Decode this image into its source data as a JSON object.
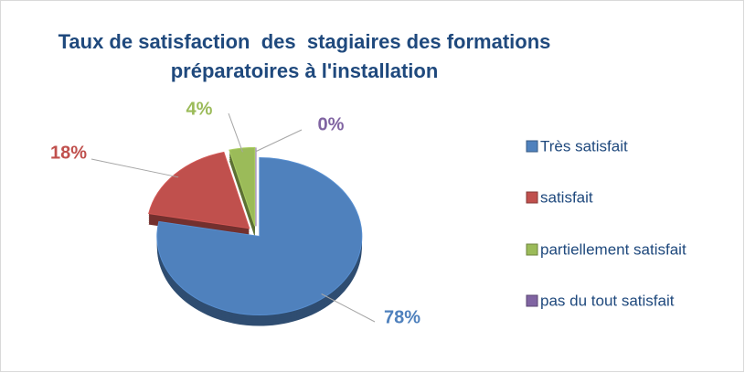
{
  "chart_data": {
    "type": "pie",
    "title": "Taux de satisfaction  des  stagiaires des formations préparatoires à l'installation",
    "categories": [
      "Très satisfait",
      "satisfait",
      "partiellement satisfait",
      "pas du tout satisfait"
    ],
    "values": [
      78,
      18,
      4,
      0
    ],
    "value_labels": [
      "78%",
      "18%",
      "4%",
      "0%"
    ],
    "colors": [
      "#4f81bd",
      "#c0504d",
      "#9bbb59",
      "#8064a2"
    ],
    "legend": "right"
  }
}
